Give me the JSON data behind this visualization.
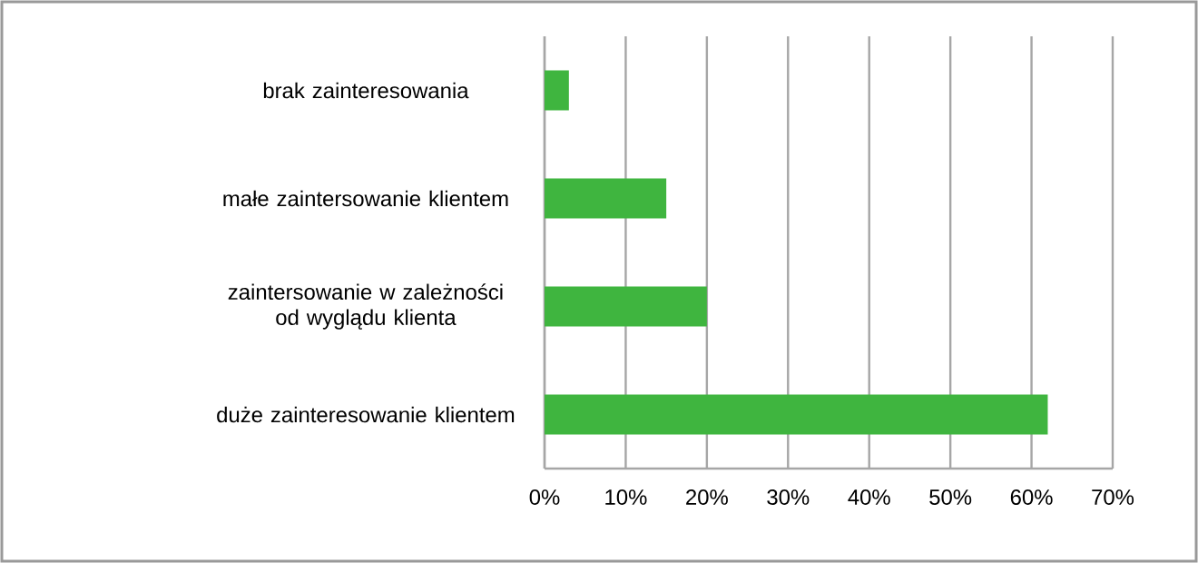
{
  "chart_data": {
    "type": "bar",
    "orientation": "horizontal",
    "categories": [
      "brak zainteresowania",
      "małe zaintersowanie klientem",
      "zaintersowanie w zależności od wyglądu klienta",
      "duże zainteresowanie klientem"
    ],
    "values": [
      3,
      15,
      20,
      62
    ],
    "color": "#3fb53f",
    "xlim": [
      0,
      70
    ],
    "xticks": [
      {
        "value": 0,
        "label": "0%"
      },
      {
        "value": 10,
        "label": "10%"
      },
      {
        "value": 20,
        "label": "20%"
      },
      {
        "value": 30,
        "label": "30%"
      },
      {
        "value": 40,
        "label": "40%"
      },
      {
        "value": 50,
        "label": "50%"
      },
      {
        "value": 60,
        "label": "60%"
      },
      {
        "value": 70,
        "label": "70%"
      }
    ],
    "grid": "x"
  }
}
